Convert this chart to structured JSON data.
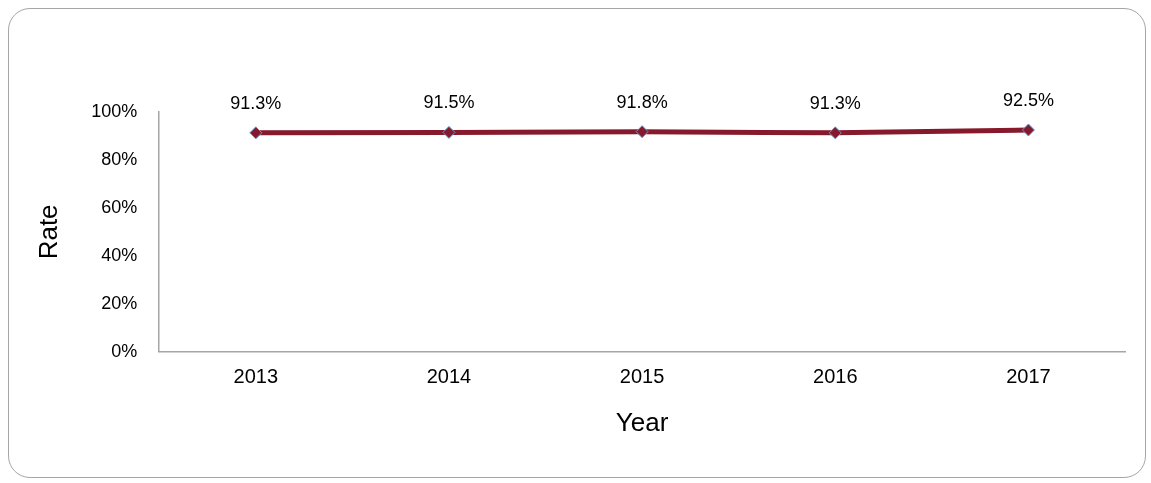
{
  "chart_data": {
    "type": "line",
    "xlabel": "Year",
    "ylabel": "Rate",
    "categories": [
      "2013",
      "2014",
      "2015",
      "2016",
      "2017"
    ],
    "series": [
      {
        "color": "#861a2c",
        "values": [
          91.3,
          91.5,
          91.8,
          91.3,
          92.5
        ],
        "value_labels": [
          "91.3%",
          "91.5%",
          "91.8%",
          "91.3%",
          "92.5%"
        ]
      }
    ],
    "ylim": [
      0,
      100
    ],
    "yticks": [
      {
        "value": 0,
        "label": "0%"
      },
      {
        "value": 20,
        "label": "20%"
      },
      {
        "value": 40,
        "label": "40%"
      },
      {
        "value": 60,
        "label": "60%"
      },
      {
        "value": 80,
        "label": "80%"
      },
      {
        "value": 100,
        "label": "100%"
      }
    ],
    "grid": false,
    "legend": false,
    "marker": "diamond",
    "line_style": "solid"
  }
}
